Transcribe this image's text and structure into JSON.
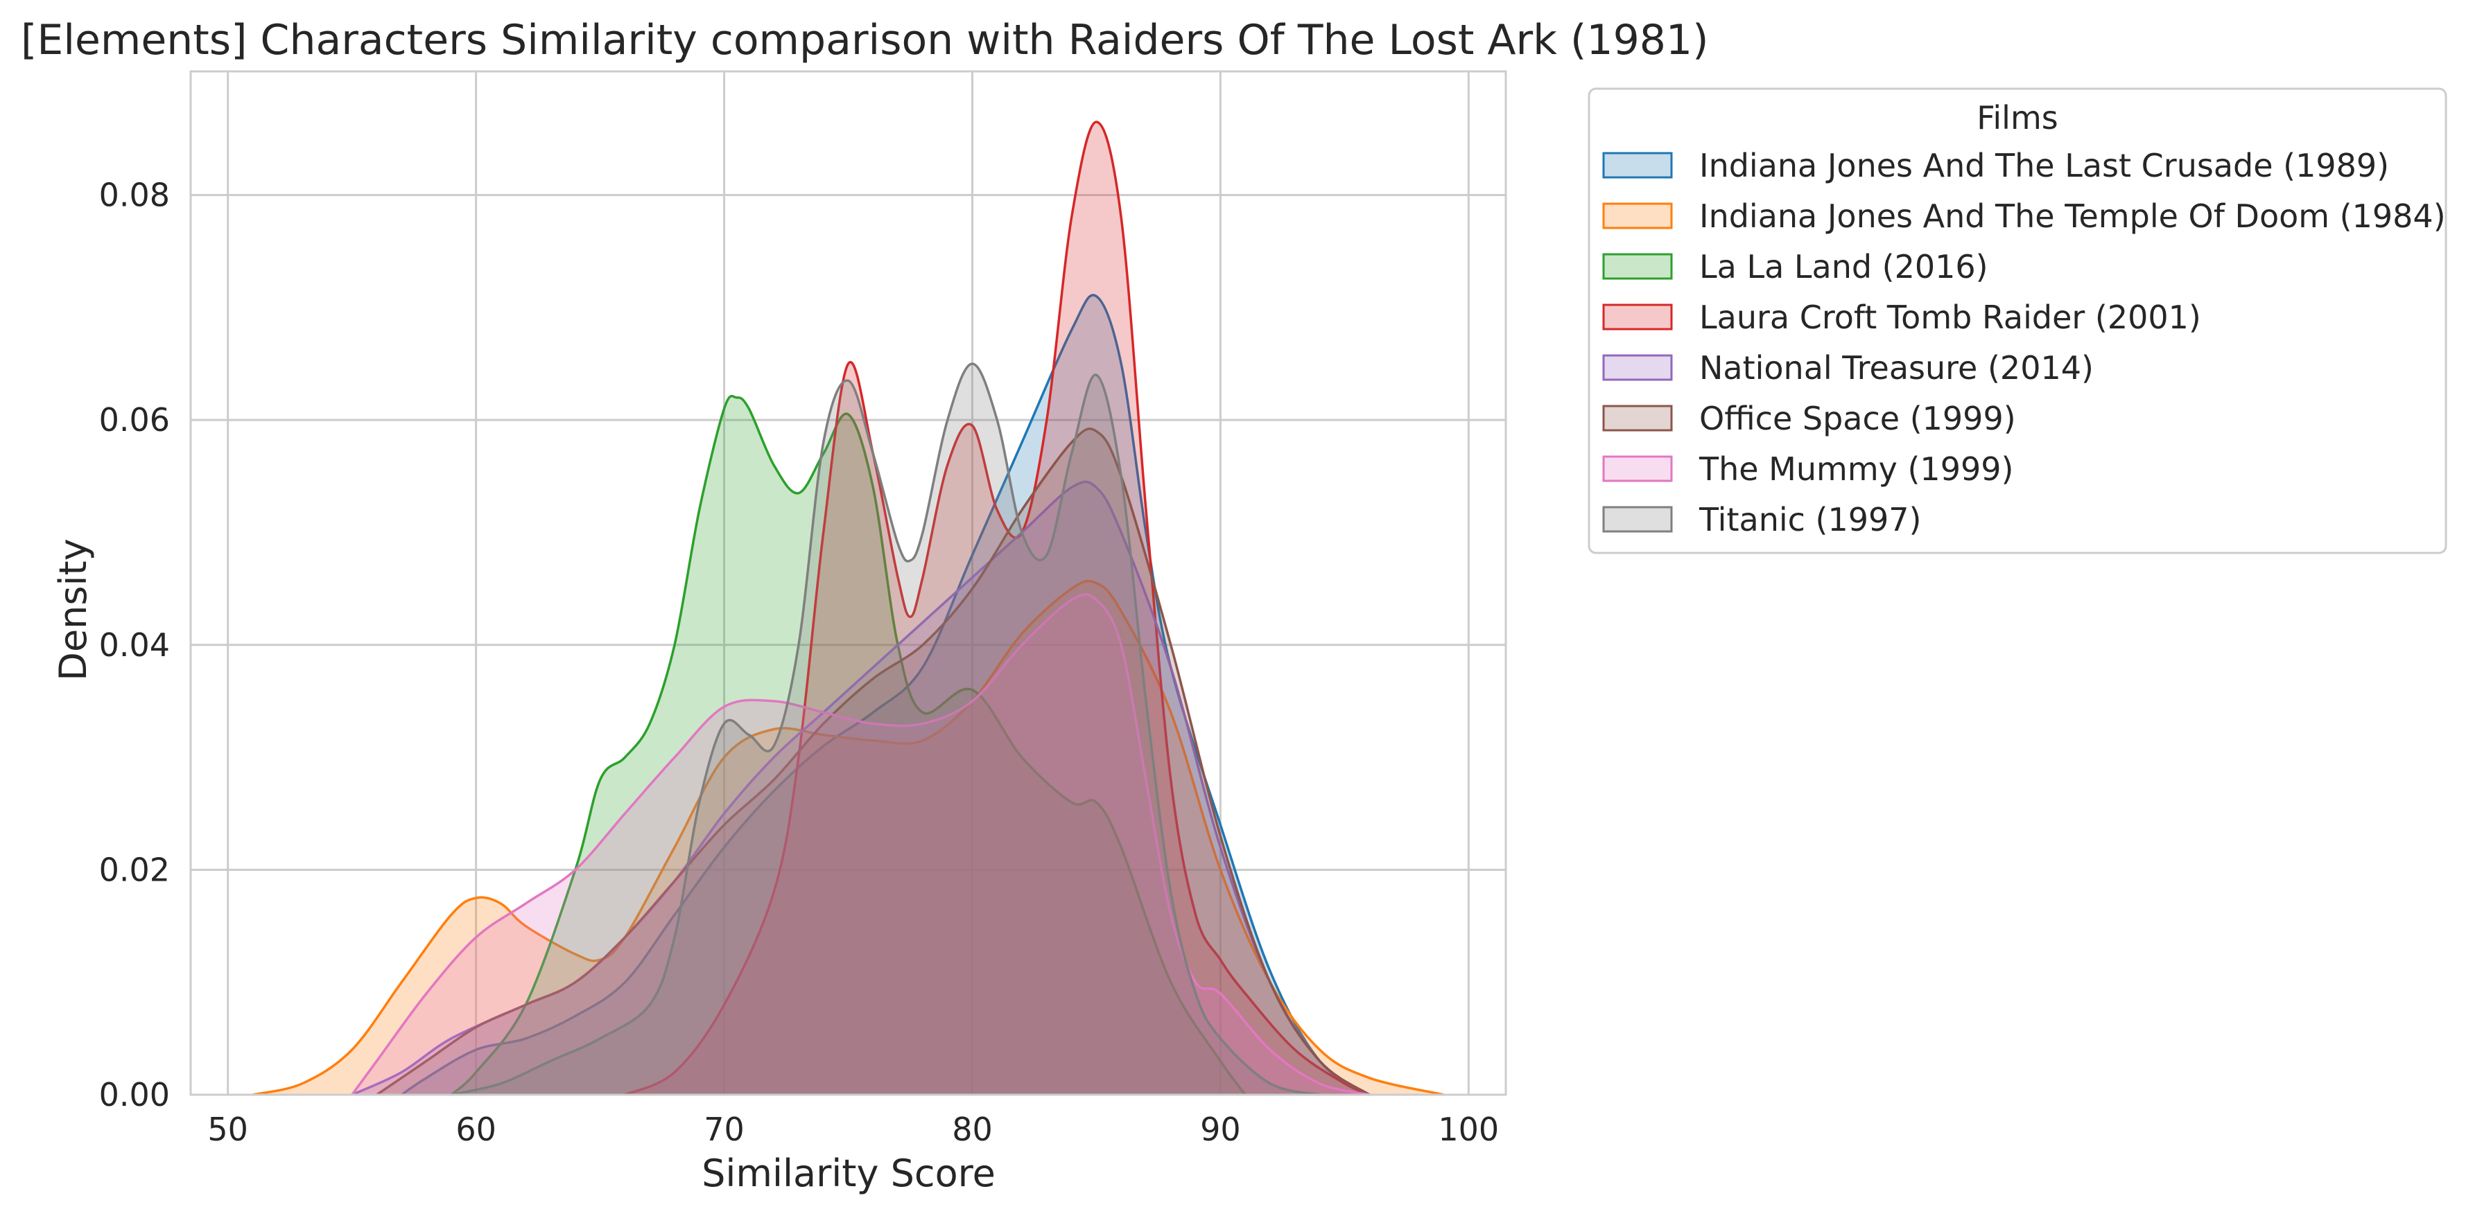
{
  "chart_data": {
    "type": "area",
    "title": "[Elements] Characters Similarity comparison with Raiders Of The Lost Ark (1981)",
    "xlabel": "Similarity Score",
    "ylabel": "Density",
    "xlim": [
      48.5,
      101.5
    ],
    "ylim": [
      0,
      0.091
    ],
    "xticks": [
      50,
      60,
      70,
      80,
      90,
      100
    ],
    "yticks": [
      0.0,
      0.02,
      0.04,
      0.06,
      0.08
    ],
    "ytick_labels": [
      "0.00",
      "0.02",
      "0.04",
      "0.06",
      "0.08"
    ],
    "grid": true,
    "legend": {
      "title": "Films",
      "placement": "outside-upper-right"
    },
    "series": [
      {
        "name": "Indiana Jones And The Last Crusade (1989)",
        "color": "#1f77b4",
        "points": [
          [
            57,
            0
          ],
          [
            58,
            0.0015
          ],
          [
            60,
            0.004
          ],
          [
            62,
            0.005
          ],
          [
            64,
            0.007
          ],
          [
            66,
            0.01
          ],
          [
            68,
            0.016
          ],
          [
            70,
            0.022
          ],
          [
            72,
            0.027
          ],
          [
            74,
            0.031
          ],
          [
            76,
            0.034
          ],
          [
            78,
            0.038
          ],
          [
            80,
            0.048
          ],
          [
            82,
            0.058
          ],
          [
            84,
            0.068
          ],
          [
            85,
            0.071
          ],
          [
            86,
            0.065
          ],
          [
            87,
            0.05
          ],
          [
            88,
            0.038
          ],
          [
            90,
            0.024
          ],
          [
            92,
            0.011
          ],
          [
            94,
            0.003
          ],
          [
            96,
            0
          ]
        ]
      },
      {
        "name": "Indiana Jones And The Temple Of Doom (1984)",
        "color": "#ff7f0e",
        "points": [
          [
            51,
            0
          ],
          [
            53,
            0.001
          ],
          [
            55,
            0.004
          ],
          [
            57,
            0.01
          ],
          [
            59,
            0.016
          ],
          [
            60,
            0.0175
          ],
          [
            61,
            0.017
          ],
          [
            62,
            0.015
          ],
          [
            64,
            0.0125
          ],
          [
            65,
            0.012
          ],
          [
            66,
            0.014
          ],
          [
            68,
            0.022
          ],
          [
            70,
            0.03
          ],
          [
            72,
            0.0325
          ],
          [
            74,
            0.032
          ],
          [
            76,
            0.0315
          ],
          [
            78,
            0.0315
          ],
          [
            80,
            0.035
          ],
          [
            82,
            0.041
          ],
          [
            84,
            0.045
          ],
          [
            85,
            0.0455
          ],
          [
            86,
            0.043
          ],
          [
            88,
            0.034
          ],
          [
            90,
            0.02
          ],
          [
            92,
            0.01
          ],
          [
            94,
            0.004
          ],
          [
            96,
            0.0015
          ],
          [
            99,
            0
          ]
        ]
      },
      {
        "name": "La La Land (2016)",
        "color": "#2ca02c",
        "points": [
          [
            59,
            0
          ],
          [
            60,
            0.002
          ],
          [
            62,
            0.008
          ],
          [
            64,
            0.02
          ],
          [
            65,
            0.028
          ],
          [
            66,
            0.03
          ],
          [
            67,
            0.033
          ],
          [
            68,
            0.04
          ],
          [
            69,
            0.052
          ],
          [
            70,
            0.061
          ],
          [
            70.5,
            0.062
          ],
          [
            71,
            0.061
          ],
          [
            72,
            0.056
          ],
          [
            73,
            0.0535
          ],
          [
            74,
            0.057
          ],
          [
            75,
            0.0605
          ],
          [
            76,
            0.054
          ],
          [
            77,
            0.04
          ],
          [
            78,
            0.034
          ],
          [
            80,
            0.036
          ],
          [
            82,
            0.03
          ],
          [
            84,
            0.026
          ],
          [
            85,
            0.026
          ],
          [
            86,
            0.022
          ],
          [
            88,
            0.01
          ],
          [
            90,
            0.003
          ],
          [
            91,
            0
          ]
        ]
      },
      {
        "name": "Laura Croft Tomb Raider (2001)",
        "color": "#d62728",
        "points": [
          [
            66,
            0
          ],
          [
            68,
            0.002
          ],
          [
            70,
            0.008
          ],
          [
            72,
            0.018
          ],
          [
            73,
            0.03
          ],
          [
            74,
            0.05
          ],
          [
            75,
            0.065
          ],
          [
            76,
            0.057
          ],
          [
            77,
            0.046
          ],
          [
            77.5,
            0.0425
          ],
          [
            78,
            0.046
          ],
          [
            79,
            0.056
          ],
          [
            80,
            0.0595
          ],
          [
            81,
            0.052
          ],
          [
            82,
            0.05
          ],
          [
            83,
            0.06
          ],
          [
            84,
            0.078
          ],
          [
            85,
            0.0865
          ],
          [
            86,
            0.078
          ],
          [
            87,
            0.052
          ],
          [
            88,
            0.028
          ],
          [
            89,
            0.016
          ],
          [
            90,
            0.012
          ],
          [
            91,
            0.009
          ],
          [
            93,
            0.004
          ],
          [
            95,
            0.001
          ],
          [
            96,
            0
          ]
        ]
      },
      {
        "name": "National Treasure (2014)",
        "color": "#9467bd",
        "points": [
          [
            55,
            0
          ],
          [
            57,
            0.002
          ],
          [
            59,
            0.005
          ],
          [
            62,
            0.008
          ],
          [
            64,
            0.01
          ],
          [
            66,
            0.014
          ],
          [
            68,
            0.019
          ],
          [
            70,
            0.025
          ],
          [
            72,
            0.03
          ],
          [
            74,
            0.034
          ],
          [
            76,
            0.038
          ],
          [
            78,
            0.042
          ],
          [
            80,
            0.046
          ],
          [
            82,
            0.05
          ],
          [
            84,
            0.054
          ],
          [
            85,
            0.054
          ],
          [
            86,
            0.05
          ],
          [
            88,
            0.038
          ],
          [
            90,
            0.022
          ],
          [
            92,
            0.01
          ],
          [
            94,
            0.003
          ],
          [
            96,
            0
          ]
        ]
      },
      {
        "name": "Office Space (1999)",
        "color": "#8c564b",
        "points": [
          [
            56,
            0
          ],
          [
            58,
            0.003
          ],
          [
            60,
            0.006
          ],
          [
            62,
            0.008
          ],
          [
            64,
            0.01
          ],
          [
            66,
            0.014
          ],
          [
            68,
            0.019
          ],
          [
            70,
            0.024
          ],
          [
            72,
            0.028
          ],
          [
            74,
            0.033
          ],
          [
            76,
            0.037
          ],
          [
            78,
            0.04
          ],
          [
            80,
            0.045
          ],
          [
            82,
            0.052
          ],
          [
            84,
            0.058
          ],
          [
            85,
            0.059
          ],
          [
            86,
            0.055
          ],
          [
            88,
            0.04
          ],
          [
            90,
            0.023
          ],
          [
            92,
            0.01
          ],
          [
            94,
            0.003
          ],
          [
            96,
            0
          ]
        ]
      },
      {
        "name": "The Mummy (1999)",
        "color": "#e377c2",
        "points": [
          [
            55,
            0
          ],
          [
            56,
            0.003
          ],
          [
            58,
            0.009
          ],
          [
            60,
            0.014
          ],
          [
            62,
            0.017
          ],
          [
            64,
            0.02
          ],
          [
            66,
            0.025
          ],
          [
            68,
            0.03
          ],
          [
            70,
            0.0345
          ],
          [
            72,
            0.035
          ],
          [
            74,
            0.034
          ],
          [
            76,
            0.033
          ],
          [
            78,
            0.033
          ],
          [
            80,
            0.035
          ],
          [
            82,
            0.04
          ],
          [
            84,
            0.044
          ],
          [
            85,
            0.044
          ],
          [
            86,
            0.04
          ],
          [
            87,
            0.028
          ],
          [
            88,
            0.016
          ],
          [
            89,
            0.01
          ],
          [
            90,
            0.009
          ],
          [
            92,
            0.004
          ],
          [
            94,
            0.001
          ],
          [
            96,
            0
          ]
        ]
      },
      {
        "name": "Titanic (1997)",
        "color": "#7f7f7f",
        "points": [
          [
            59,
            0
          ],
          [
            61,
            0.001
          ],
          [
            63,
            0.003
          ],
          [
            65,
            0.005
          ],
          [
            67,
            0.008
          ],
          [
            68,
            0.014
          ],
          [
            69,
            0.026
          ],
          [
            70,
            0.033
          ],
          [
            71,
            0.032
          ],
          [
            72,
            0.031
          ],
          [
            73,
            0.04
          ],
          [
            74,
            0.058
          ],
          [
            75,
            0.0635
          ],
          [
            76,
            0.057
          ],
          [
            77,
            0.049
          ],
          [
            77.5,
            0.0475
          ],
          [
            78,
            0.05
          ],
          [
            79,
            0.06
          ],
          [
            80,
            0.065
          ],
          [
            81,
            0.06
          ],
          [
            82,
            0.05
          ],
          [
            83,
            0.048
          ],
          [
            84,
            0.057
          ],
          [
            85,
            0.064
          ],
          [
            86,
            0.055
          ],
          [
            87,
            0.035
          ],
          [
            88,
            0.018
          ],
          [
            89,
            0.009
          ],
          [
            90,
            0.005
          ],
          [
            92,
            0.001
          ],
          [
            94,
            0
          ]
        ]
      }
    ]
  }
}
